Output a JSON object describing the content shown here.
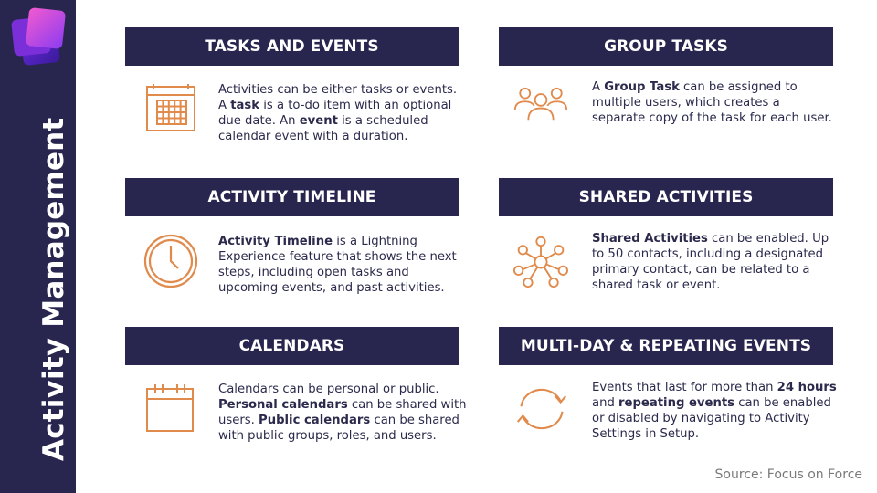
{
  "sidebar": {
    "title": "Activity Management"
  },
  "colors": {
    "navy": "#28264f",
    "orange": "#e08a4b",
    "purple_logo": "#7c3aed",
    "pink_logo": "#e040c0"
  },
  "sections": [
    {
      "header": "TASKS AND EVENTS",
      "icon": "calendar-grid-icon",
      "parts": [
        {
          "t": "Activities can be either tasks or events. A "
        },
        {
          "t": "task",
          "b": true
        },
        {
          "t": " is a to-do item with an optional due date. An "
        },
        {
          "t": "event",
          "b": true
        },
        {
          "t": " is a scheduled calendar event with a duration."
        }
      ]
    },
    {
      "header": "GROUP TASKS",
      "icon": "group-users-icon",
      "parts": [
        {
          "t": "A "
        },
        {
          "t": "Group Task",
          "b": true
        },
        {
          "t": " can be assigned to multiple users, which creates a separate copy of the task for each user."
        }
      ]
    },
    {
      "header": "ACTIVITY TIMELINE",
      "icon": "clock-icon",
      "parts": [
        {
          "t": "Activity Timeline",
          "b": true
        },
        {
          "t": " is a Lightning Experience feature that shows the next steps, including open tasks and upcoming events, and past activities."
        }
      ]
    },
    {
      "header": "SHARED ACTIVITIES",
      "icon": "network-contacts-icon",
      "parts": [
        {
          "t": "Shared Activities",
          "b": true
        },
        {
          "t": " can be enabled. Up to 50 contacts, including a designated primary contact, can be related to a shared task or event."
        }
      ]
    },
    {
      "header": "CALENDARS",
      "icon": "calendar-icon",
      "parts": [
        {
          "t": "Calendars can be personal or public. "
        },
        {
          "t": "Personal calendars",
          "b": true
        },
        {
          "t": " can be shared with users. "
        },
        {
          "t": "Public calendars",
          "b": true
        },
        {
          "t": " can be shared with public groups, roles, and users."
        }
      ]
    },
    {
      "header": "MULTI-DAY & REPEATING EVENTS",
      "icon": "repeat-arrows-icon",
      "parts": [
        {
          "t": "Events that last for more than "
        },
        {
          "t": "24 hours",
          "b": true
        },
        {
          "t": " and "
        },
        {
          "t": "repeating events",
          "b": true
        },
        {
          "t": " can be enabled or disabled by navigating to Activity Settings in Setup."
        }
      ]
    }
  ],
  "footer": {
    "source": "Source: Focus on Force"
  }
}
